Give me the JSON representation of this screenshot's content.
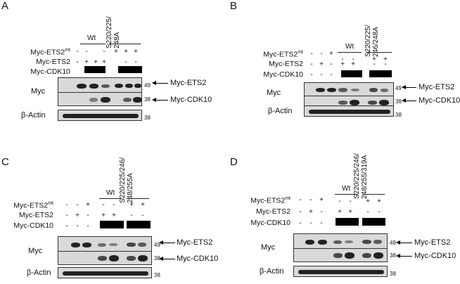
{
  "panels": {
    "A": {
      "letter": "A",
      "wt": "Wt",
      "mut": [
        "S220/225/",
        "248A"
      ],
      "mt_label": "Myc-ETS2",
      "mt_sup": "mt",
      "ets2_label": "Myc-ETS2",
      "cdk10_label": "Myc-CDK10",
      "myc": "Myc",
      "actin": "β-Actin",
      "mw49": "49",
      "mw38a": "38",
      "mw38b": "38",
      "arrow_ets2": "Myc-ETS2",
      "arrow_cdk10": "Myc-CDK10",
      "row_mt": [
        "-",
        "-",
        "-",
        "+",
        "+",
        "+"
      ],
      "row_ets2": [
        "-",
        "+",
        "+",
        "+",
        "-",
        "-"
      ]
    },
    "B": {
      "letter": "B",
      "wt": "Wt",
      "mut": [
        "S220/225/",
        "246/248A"
      ],
      "mt_label": "Myc-ETS2",
      "mt_sup": "mt",
      "ets2_label": "Myc-ETS2",
      "cdk10_label": "Myc-CDK10",
      "myc": "Myc",
      "actin": "β-Actin",
      "mw49": "49",
      "mw38a": "38",
      "mw38b": "38",
      "arrow_ets2": "Myc-ETS2",
      "arrow_cdk10": "Myc-CDK10",
      "row_mt": [
        "-",
        "-",
        "+",
        "-",
        "-",
        "+",
        "+"
      ],
      "row_ets2": [
        "-",
        "+",
        "-",
        "+",
        "+",
        "-",
        "-"
      ],
      "row_cdk10": [
        "-",
        "-",
        "-"
      ]
    },
    "C": {
      "letter": "C",
      "wt": "Wt",
      "mut": [
        "S220/225/246/",
        "248/255A"
      ],
      "mt_label": "Myc-ETS2",
      "mt_sup": "mt",
      "ets2_label": "Myc-ETS2",
      "cdk10_label": "Myc-CDK10",
      "myc": "Myc",
      "actin": "β-Actin",
      "mw49": "49",
      "mw38a": "38",
      "mw38b": "38",
      "arrow_ets2": "Myc-ETS2",
      "arrow_cdk10": "Myc-CDK10",
      "row_mt": [
        "-",
        "-",
        "+",
        "-",
        "-",
        "+",
        "+"
      ],
      "row_ets2": [
        "-",
        "+",
        "-",
        "+",
        "+",
        "-",
        "-"
      ],
      "row_cdk10": [
        "-",
        "-",
        "-"
      ]
    },
    "D": {
      "letter": "D",
      "wt": "Wt",
      "mut": [
        "S220/225/246/",
        "248/255/319A"
      ],
      "mt_label": "Myc-ETS2",
      "mt_sup": "mt",
      "ets2_label": "Myc-ETS2",
      "cdk10_label": "Myc-CDK10",
      "myc": "Myc",
      "actin": "β-Actin",
      "mw49": "49",
      "mw38a": "38",
      "mw38b": "38",
      "arrow_ets2": "Myc-ETS2",
      "arrow_cdk10": "Myc-CDK10",
      "row_mt": [
        "-",
        "-",
        "+",
        "-",
        "-",
        "+",
        "+"
      ],
      "row_ets2": [
        "-",
        "+",
        "-",
        "+",
        "+",
        "-",
        "-"
      ],
      "row_cdk10": [
        "-",
        "-",
        "-"
      ]
    }
  }
}
